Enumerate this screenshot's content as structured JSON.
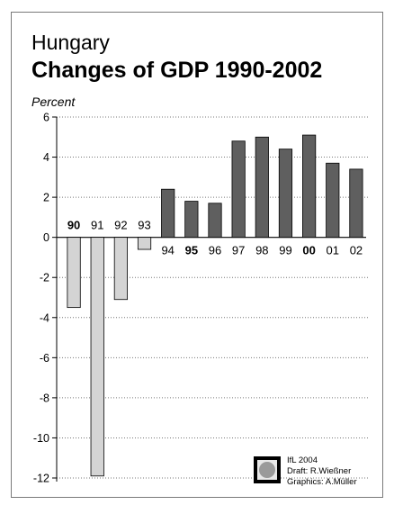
{
  "country_title": "Hungary",
  "main_title": "Changes of GDP 1990-2002",
  "chart_data": {
    "type": "bar",
    "title": "Changes of GDP 1990-2002",
    "subtitle": "Hungary",
    "ylabel": "Percent",
    "xlabel": "",
    "categories": [
      "90",
      "91",
      "92",
      "93",
      "94",
      "95",
      "96",
      "97",
      "98",
      "99",
      "00",
      "01",
      "02"
    ],
    "bold_categories": [
      "90",
      "95",
      "00"
    ],
    "values": [
      -3.5,
      -11.9,
      -3.1,
      -0.6,
      2.4,
      1.8,
      1.7,
      4.8,
      5.0,
      4.4,
      5.1,
      3.7,
      3.4
    ],
    "ylim": [
      -12,
      6
    ],
    "yticks": [
      6,
      4,
      2,
      0,
      -2,
      -4,
      -6,
      -8,
      -10,
      -12
    ],
    "grid": true,
    "colors": {
      "positive": "#5f5f5f",
      "negative": "#d4d4d4",
      "outline": "#000000"
    }
  },
  "credits": {
    "line1": "IfL 2004",
    "line2": "Draft: R.Wießner",
    "line3": "Graphics: A.Müller"
  }
}
